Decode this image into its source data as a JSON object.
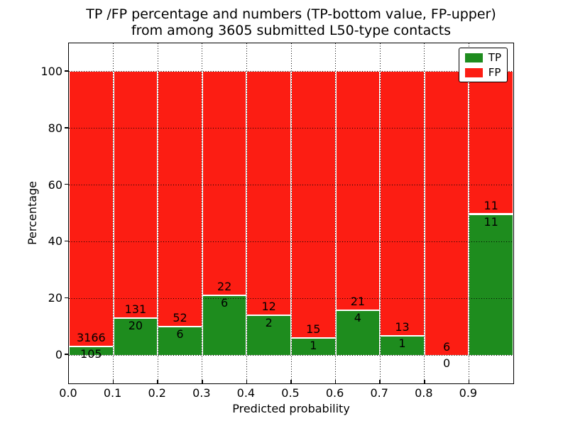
{
  "title": {
    "line1": "TP /FP percentage and numbers (TP-bottom value, FP-upper)",
    "line2": "from among 3605 submitted L50-type contacts"
  },
  "axes": {
    "xlabel": "Predicted probability",
    "ylabel": "Percentage",
    "xtick_labels": [
      "0.0",
      "0.1",
      "0.2",
      "0.3",
      "0.4",
      "0.5",
      "0.6",
      "0.7",
      "0.8",
      "0.9"
    ],
    "ytick_labels": [
      "0",
      "20",
      "40",
      "60",
      "80",
      "100"
    ],
    "ytick_values": [
      0,
      20,
      40,
      60,
      80,
      100
    ]
  },
  "legend": {
    "items": [
      {
        "label": "TP",
        "color": "#1e8c1e"
      },
      {
        "label": "FP",
        "color": "#fc1d13"
      }
    ]
  },
  "colors": {
    "tp_green": "#1e8c1e",
    "fp_red": "#fc1d13",
    "grid": "#000000",
    "background": "#ffffff",
    "bar_edge": "#ffffff"
  },
  "chart_data": {
    "type": "bar",
    "stacked": true,
    "percent_normalized": true,
    "title": "TP /FP percentage and numbers (TP-bottom value, FP-upper) from among 3605 submitted L50-type contacts",
    "xlabel": "Predicted probability",
    "ylabel": "Percentage",
    "xlim": [
      0.0,
      1.0
    ],
    "ylim": [
      -10,
      110
    ],
    "bin_edges": [
      0.0,
      0.1,
      0.2,
      0.3,
      0.4,
      0.5,
      0.6,
      0.7,
      0.8,
      0.9,
      1.0
    ],
    "categories": [
      "0.0-0.1",
      "0.1-0.2",
      "0.2-0.3",
      "0.3-0.4",
      "0.4-0.5",
      "0.5-0.6",
      "0.6-0.7",
      "0.7-0.8",
      "0.8-0.9",
      "0.9-1.0"
    ],
    "series": [
      {
        "name": "TP",
        "color": "#1e8c1e",
        "counts": [
          105,
          20,
          6,
          6,
          2,
          1,
          4,
          1,
          0,
          11
        ]
      },
      {
        "name": "FP",
        "color": "#fc1d13",
        "counts": [
          3166,
          131,
          52,
          22,
          12,
          15,
          21,
          13,
          6,
          11
        ]
      }
    ],
    "tp_percent": [
      3.21,
      13.25,
      10.34,
      21.43,
      14.29,
      6.25,
      16.0,
      7.14,
      0.0,
      50.0
    ],
    "total_contacts": 3605,
    "legend_position": "upper right",
    "grid": "dotted, both axes"
  }
}
